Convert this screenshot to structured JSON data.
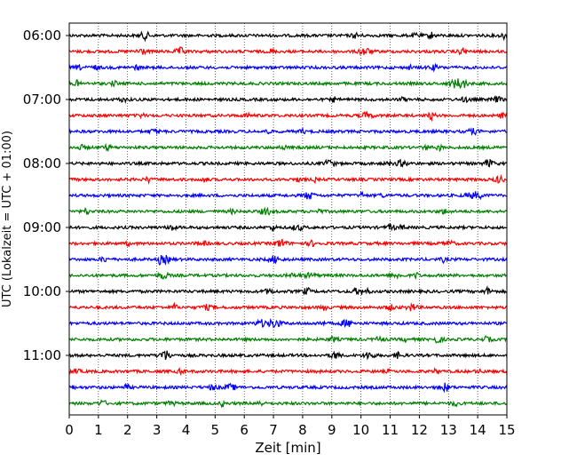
{
  "chart_data": {
    "type": "line",
    "xlabel": "Zeit  [min]",
    "ylabel": "UTC (Lokalzeit = UTC + 01:00)",
    "xlim": [
      0,
      15
    ],
    "x_ticks": [
      "0",
      "1",
      "2",
      "3",
      "4",
      "5",
      "6",
      "7",
      "8",
      "9",
      "10",
      "11",
      "12",
      "13",
      "14",
      "15"
    ],
    "y_ticks": [
      "06:00",
      "07:00",
      "08:00",
      "09:00",
      "10:00",
      "11:00"
    ],
    "trace_start_times": [
      "06:00",
      "06:15",
      "06:30",
      "06:45",
      "07:00",
      "07:15",
      "07:30",
      "07:45",
      "08:00",
      "08:15",
      "08:30",
      "08:45",
      "09:00",
      "09:15",
      "09:30",
      "09:45",
      "10:00",
      "10:15",
      "10:30",
      "10:45",
      "11:00",
      "11:15",
      "11:30",
      "11:45"
    ],
    "trace_colors": [
      "#000000",
      "#ff0000",
      "#0000ff",
      "#008000"
    ],
    "grid": "vertical dotted lines at each minute"
  }
}
